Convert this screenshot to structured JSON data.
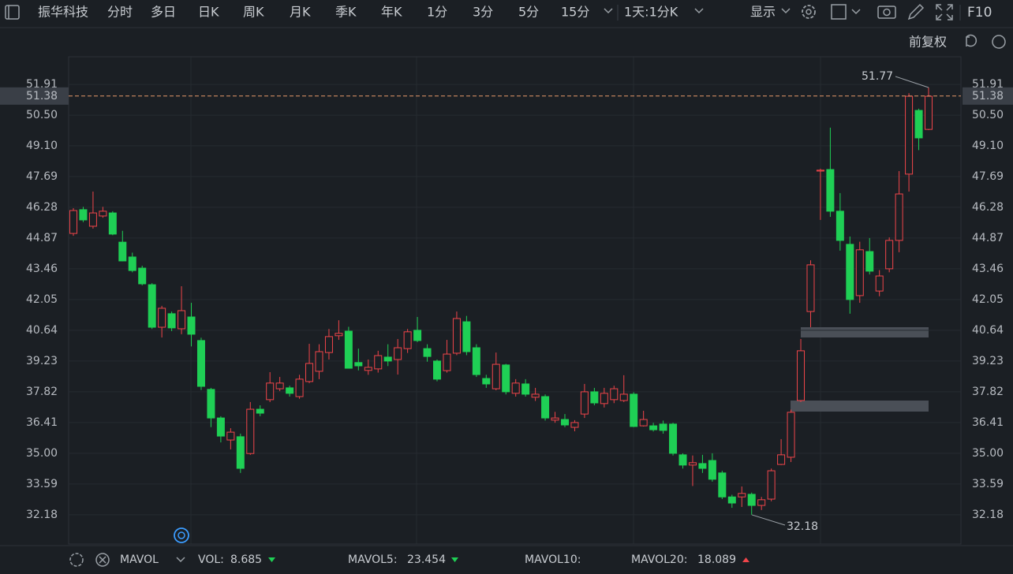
{
  "toolbar": {
    "symbol": "振华科技",
    "tabs": [
      "分时",
      "多日",
      "日K",
      "周K",
      "月K",
      "季K",
      "年K",
      "1分",
      "3分",
      "5分",
      "15分"
    ],
    "interval": "1天:1分K",
    "display": "显示",
    "f10": "F10"
  },
  "adjust": "前复权",
  "chart_data": {
    "type": "candlestick",
    "open": [
      45.08,
      46.17,
      45.41,
      45.88,
      46.02,
      44.68,
      44.0,
      43.49,
      42.73,
      40.78,
      41.4,
      40.71,
      41.25,
      40.17,
      37.93,
      36.62,
      35.61,
      35.76,
      34.99,
      37.02,
      37.46,
      37.96,
      38.0,
      37.6,
      38.29,
      38.76,
      39.62,
      40.39,
      40.6,
      39.16,
      38.8,
      38.87,
      39.41,
      39.3,
      39.8,
      40.64,
      39.8,
      39.23,
      38.79,
      39.59,
      41.03,
      39.84,
      38.43,
      37.96,
      39.05,
      37.75,
      38.18,
      37.57,
      37.6,
      36.52,
      36.55,
      36.19,
      36.8,
      37.82,
      37.28,
      37.46,
      37.42,
      37.71,
      36.26,
      36.26,
      36.34,
      36.34,
      34.93,
      34.46,
      34.53,
      34.67,
      34.1,
      33.0,
      33.0,
      33.12,
      32.61,
      32.9,
      34.49,
      34.82,
      37.42,
      41.5,
      47.94,
      48.01,
      46.1,
      44.58,
      42.23,
      44.25,
      42.44,
      43.46,
      44.76,
      47.8,
      50.72,
      49.85
    ],
    "high": [
      46.24,
      46.3,
      47.0,
      46.3,
      46.1,
      45.2,
      44.2,
      43.6,
      42.8,
      41.76,
      41.5,
      42.66,
      41.9,
      40.3,
      38.0,
      36.7,
      36.15,
      35.9,
      37.35,
      37.2,
      38.72,
      38.5,
      38.1,
      38.6,
      40.02,
      40.0,
      40.7,
      41.1,
      40.8,
      39.8,
      39.3,
      39.7,
      40.0,
      40.24,
      40.7,
      41.25,
      40.0,
      39.3,
      40.2,
      41.5,
      41.3,
      40.0,
      38.6,
      39.62,
      39.1,
      38.4,
      38.4,
      38.0,
      37.7,
      36.9,
      36.8,
      36.52,
      38.18,
      38.0,
      38.0,
      38.1,
      38.58,
      37.8,
      36.95,
      36.4,
      36.5,
      36.4,
      35.0,
      34.9,
      34.93,
      35.0,
      34.2,
      33.1,
      33.48,
      33.2,
      33.0,
      34.3,
      35.65,
      37.0,
      40.24,
      43.85,
      48.05,
      49.93,
      46.93,
      44.94,
      44.7,
      44.87,
      43.4,
      44.9,
      47.94,
      51.51,
      50.8,
      51.77
    ],
    "low": [
      44.97,
      45.6,
      45.3,
      45.8,
      45.0,
      43.8,
      43.3,
      42.7,
      40.7,
      40.31,
      40.6,
      40.46,
      39.9,
      37.9,
      36.2,
      35.5,
      35.18,
      34.1,
      34.93,
      36.7,
      37.35,
      37.85,
      37.6,
      37.5,
      38.22,
      38.4,
      39.3,
      40.2,
      38.9,
      38.8,
      38.6,
      38.7,
      39.0,
      38.61,
      39.6,
      40.1,
      39.2,
      38.3,
      38.7,
      39.5,
      39.5,
      38.5,
      38.0,
      37.89,
      37.7,
      37.6,
      37.6,
      37.4,
      36.5,
      36.4,
      36.2,
      36.01,
      36.62,
      37.2,
      37.1,
      37.3,
      37.35,
      36.2,
      36.23,
      36.0,
      35.9,
      34.9,
      34.3,
      33.5,
      34.1,
      33.7,
      32.9,
      32.5,
      32.54,
      32.18,
      32.4,
      32.8,
      34.46,
      34.6,
      37.35,
      40.78,
      45.7,
      45.84,
      44.29,
      41.4,
      41.9,
      43.2,
      42.2,
      43.3,
      44.22,
      47.0,
      48.9,
      49.82
    ],
    "close": [
      46.13,
      45.7,
      46.02,
      46.1,
      45.05,
      43.82,
      43.38,
      42.77,
      40.78,
      41.65,
      40.75,
      41.54,
      40.46,
      38.07,
      36.62,
      35.79,
      35.97,
      34.31,
      37.02,
      36.84,
      38.22,
      38.22,
      37.75,
      38.4,
      39.12,
      39.66,
      40.35,
      40.5,
      38.9,
      39.01,
      38.94,
      39.48,
      39.23,
      39.84,
      40.57,
      40.17,
      39.44,
      38.4,
      39.55,
      41.18,
      39.66,
      38.61,
      38.18,
      39.08,
      37.82,
      38.22,
      37.71,
      37.71,
      36.62,
      36.62,
      36.3,
      36.41,
      37.82,
      37.31,
      37.75,
      37.96,
      37.71,
      36.23,
      36.55,
      36.08,
      36.05,
      35.0,
      34.46,
      34.57,
      34.31,
      33.81,
      33.0,
      32.72,
      33.16,
      32.61,
      32.87,
      34.2,
      34.93,
      36.88,
      39.7,
      43.64,
      47.98,
      46.1,
      44.76,
      42.05,
      44.33,
      43.35,
      43.13,
      44.76,
      46.89,
      51.37,
      49.46,
      51.37
    ],
    "up_color": "#f0454a",
    "down_color": "#1fcf55",
    "ylim": [
      30.84,
      53.18
    ],
    "yticks": [
      51.91,
      {
        "value": 50.5,
        "label": "50.50"
      },
      {
        "value": 49.1,
        "label": "49.10"
      },
      47.69,
      46.28,
      44.87,
      43.46,
      42.05,
      40.64,
      39.23,
      37.82,
      36.41,
      {
        "value": 35.0,
        "label": "35.00"
      },
      33.59,
      32.18
    ],
    "grid": true,
    "current_price": 51.38,
    "high_value": 51.77,
    "low_value": 32.18
  },
  "indicator_bar": {
    "name": "MAVOL",
    "vol_label": "VOL:",
    "vol": 8.685,
    "mavol5_label": "MAVOL5:",
    "mavol5": 23.454,
    "mavol10_label": "MAVOL10:",
    "mavol20_label": "MAVOL20:",
    "mavol20": 18.089
  }
}
